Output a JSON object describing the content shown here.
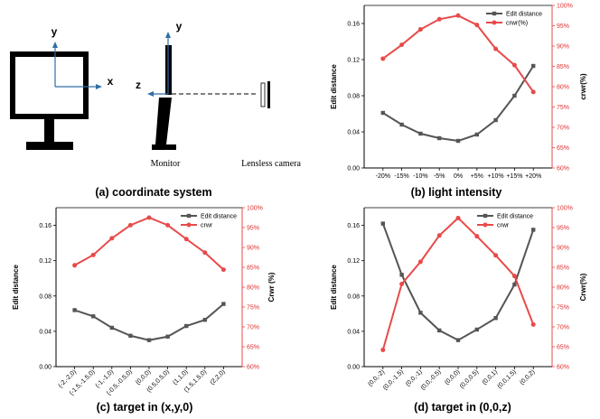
{
  "panel_a": {
    "caption": "(a) coordinate system",
    "axis_y": "y",
    "axis_x": "x",
    "axis_z": "z",
    "axis_y2": "y",
    "monitor_label": "Monitor",
    "camera_label": "Lensless camera"
  },
  "chart_data": [
    {
      "id": "b",
      "type": "line",
      "title": "(b) light intensity",
      "xlabel": "",
      "ylabel": "Edit distance",
      "y2label": "crwr(%)",
      "categories": [
        "-20%",
        "-15%",
        "-10%",
        "-5%",
        "0%",
        "+5%",
        "+10%",
        "+15%",
        "+20%"
      ],
      "ylim": [
        0,
        0.18
      ],
      "yticks": [
        "0.00",
        "0.04",
        "0.08",
        "0.12",
        "0.16"
      ],
      "y2lim": [
        60,
        100
      ],
      "y2ticks": [
        "60%",
        "65%",
        "70%",
        "75%",
        "80%",
        "85%",
        "90%",
        "95%",
        "100%"
      ],
      "grid": false,
      "legend_position": "top-right",
      "series": [
        {
          "name": "Edit distance",
          "axis": "left",
          "color": "#555555",
          "marker": "square",
          "values": [
            0.061,
            0.048,
            0.038,
            0.033,
            0.03,
            0.037,
            0.053,
            0.08,
            0.113
          ]
        },
        {
          "name": "crwr(%)",
          "axis": "right",
          "color": "#e84a4a",
          "marker": "circle",
          "values": [
            86.9,
            90.3,
            94.1,
            96.6,
            97.5,
            95.2,
            89.3,
            85.3,
            78.7
          ]
        }
      ]
    },
    {
      "id": "c",
      "type": "line",
      "title": "(c) target in (x,y,0)",
      "xlabel": "",
      "ylabel": "Edit distance",
      "y2label": "Crwr (%)",
      "categories": [
        "(-2,-2,0)",
        "(-1.5,-1.5,0)",
        "(-1,-1,0)",
        "(-0.5,-0.5,0)",
        "(0,0,0)",
        "(0.5,0.5,0)",
        "(1,1,0)",
        "(1.5,1.5,0)",
        "(2,2,0)"
      ],
      "ylim": [
        0,
        0.18
      ],
      "yticks": [
        "0.00",
        "0.04",
        "0.08",
        "0.12",
        "0.16"
      ],
      "y2lim": [
        60,
        100
      ],
      "y2ticks": [
        "60%",
        "65%",
        "70%",
        "75%",
        "80%",
        "85%",
        "90%",
        "95%",
        "100%"
      ],
      "grid": false,
      "legend_position": "top-right",
      "series": [
        {
          "name": "Edit distance",
          "axis": "left",
          "color": "#555555",
          "marker": "square",
          "values": [
            0.064,
            0.057,
            0.044,
            0.035,
            0.03,
            0.034,
            0.046,
            0.053,
            0.071
          ]
        },
        {
          "name": "crwr",
          "axis": "right",
          "color": "#e84a4a",
          "marker": "circle",
          "values": [
            85.5,
            88.1,
            92.3,
            95.6,
            97.5,
            95.6,
            92.1,
            88.7,
            84.4
          ]
        }
      ]
    },
    {
      "id": "d",
      "type": "line",
      "title": "(d) target in (0,0,z)",
      "xlabel": "",
      "ylabel": "Edit distance",
      "y2label": "Crwr(%)",
      "categories": [
        "(0,0,-2)",
        "(0,0,-1.5)",
        "(0,0,-1)",
        "(0,0,-0.5)",
        "(0,0,0)",
        "(0,0,0.5)",
        "(0,0,1)",
        "(0,0,1.5)",
        "(0,0,2)"
      ],
      "ylim": [
        0,
        0.18
      ],
      "yticks": [
        "0.00",
        "0.04",
        "0.08",
        "0.12",
        "0.16"
      ],
      "y2lim": [
        60,
        100
      ],
      "y2ticks": [
        "60%",
        "65%",
        "70%",
        "75%",
        "80%",
        "85%",
        "90%",
        "95%",
        "100%"
      ],
      "grid": false,
      "legend_position": "top-right",
      "series": [
        {
          "name": "Edit distance",
          "axis": "left",
          "color": "#555555",
          "marker": "square",
          "values": [
            0.162,
            0.104,
            0.061,
            0.041,
            0.03,
            0.042,
            0.055,
            0.093,
            0.155
          ]
        },
        {
          "name": "crwr",
          "axis": "right",
          "color": "#e84a4a",
          "marker": "circle",
          "values": [
            64.2,
            80.8,
            86.4,
            93.0,
            97.4,
            92.8,
            88.0,
            82.8,
            70.6
          ]
        }
      ]
    }
  ]
}
